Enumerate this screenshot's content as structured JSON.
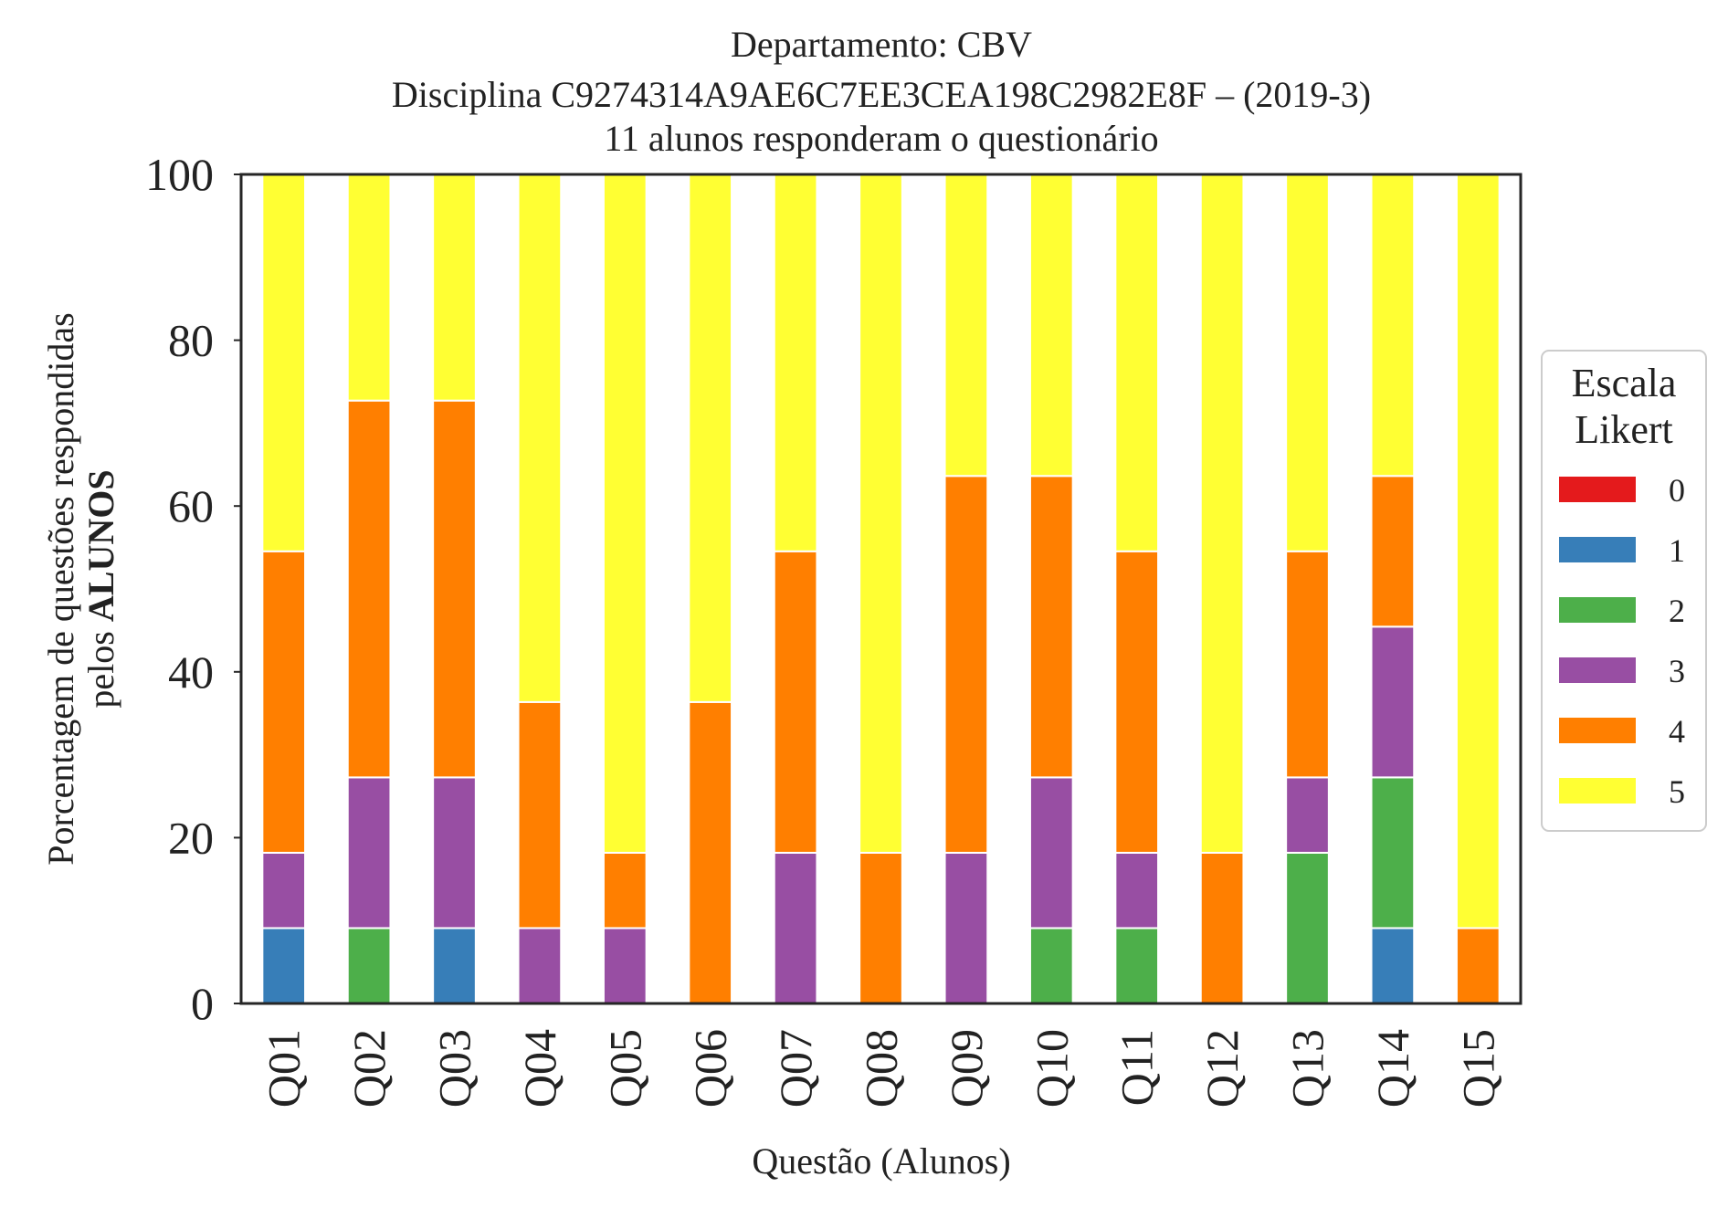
{
  "chart_data": {
    "type": "bar",
    "stacked": true,
    "title_lines": [
      "Departamento: CBV",
      "Disciplina C9274314A9AE6C7EE3CEA198C2982E8F – (2019-3)",
      "11 alunos responderam o questionário"
    ],
    "xlabel": "Questão (Alunos)",
    "ylabel_line1": "Porcentagem de questões respondidas",
    "ylabel_line2_prefix": "pelos ",
    "ylabel_line2_bold": "ALUNOS",
    "ylim": [
      0,
      100
    ],
    "yticks": [
      0,
      20,
      40,
      60,
      80,
      100
    ],
    "grid": false,
    "legend_position": "right",
    "legend_title_lines": [
      "Escala",
      "Likert"
    ],
    "categories": [
      "Q01",
      "Q02",
      "Q03",
      "Q04",
      "Q05",
      "Q06",
      "Q07",
      "Q08",
      "Q09",
      "Q10",
      "Q11",
      "Q12",
      "Q13",
      "Q14",
      "Q15"
    ],
    "series": [
      {
        "name": "0",
        "color": "#e41a1c",
        "values": [
          0,
          0,
          0,
          0,
          0,
          0,
          0,
          0,
          0,
          0,
          0,
          0,
          0,
          0,
          0
        ]
      },
      {
        "name": "1",
        "color": "#377eb8",
        "values": [
          9.09,
          0,
          9.09,
          0,
          0,
          0,
          0,
          0,
          0,
          0,
          0,
          0,
          0,
          9.09,
          0
        ]
      },
      {
        "name": "2",
        "color": "#4daf4a",
        "values": [
          0,
          9.09,
          0,
          0,
          0,
          0,
          0,
          0,
          0,
          9.09,
          9.09,
          0,
          18.18,
          18.18,
          0
        ]
      },
      {
        "name": "3",
        "color": "#984ea3",
        "values": [
          9.09,
          18.18,
          18.18,
          9.09,
          9.09,
          0,
          18.18,
          0,
          18.18,
          18.18,
          9.09,
          0,
          9.09,
          18.18,
          0
        ]
      },
      {
        "name": "4",
        "color": "#ff7f00",
        "values": [
          36.36,
          45.45,
          45.45,
          27.27,
          9.09,
          36.36,
          36.36,
          18.18,
          45.45,
          36.36,
          36.36,
          18.18,
          27.27,
          18.18,
          9.09
        ]
      },
      {
        "name": "5",
        "color": "#ffff33",
        "values": [
          45.45,
          27.27,
          27.27,
          63.64,
          81.82,
          63.64,
          45.45,
          81.82,
          36.36,
          36.36,
          45.45,
          81.82,
          45.45,
          36.36,
          90.91
        ]
      }
    ]
  }
}
